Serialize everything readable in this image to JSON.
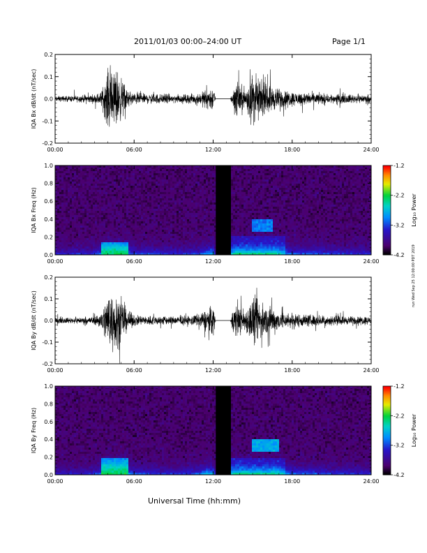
{
  "header": {
    "title": "2011/01/03  00:00–24:00 UT",
    "page": "Page 1/1"
  },
  "footer": {
    "xlabel": "Universal Time (hh:mm)",
    "side_stamp": "run Wed Sep 25 12:00:00 PDT 2019"
  },
  "chart_data": [
    {
      "type": "line",
      "panel": "Bx dB/dt waveform",
      "ylabel": "IQA Bx dB/dt (nT/sec)",
      "x": [
        "00:00",
        "06:00",
        "12:00",
        "18:00",
        "24:00"
      ],
      "xlim": [
        0,
        24
      ],
      "ylim": [
        -0.2,
        0.2
      ],
      "yticks": [
        "-0.2",
        "-0.1",
        "0.0",
        "0.1",
        "0.2"
      ],
      "data_gap_hours": [
        12.2,
        13.3
      ],
      "envelope": {
        "hours": [
          0,
          1,
          2,
          3,
          3.5,
          4,
          4.3,
          4.7,
          5,
          5.5,
          6,
          7,
          8,
          9,
          10,
          11,
          11.5,
          12,
          12.2,
          13.3,
          13.6,
          14,
          14.5,
          15,
          15.5,
          16,
          16.5,
          17,
          18,
          19,
          20,
          21,
          22,
          23,
          24
        ],
        "amplitude": [
          0.02,
          0.02,
          0.025,
          0.03,
          0.05,
          0.2,
          0.2,
          0.2,
          0.15,
          0.06,
          0.04,
          0.035,
          0.035,
          0.03,
          0.03,
          0.04,
          0.07,
          0.09,
          0.0,
          0.0,
          0.12,
          0.1,
          0.08,
          0.2,
          0.12,
          0.1,
          0.09,
          0.07,
          0.05,
          0.045,
          0.04,
          0.035,
          0.03,
          0.03,
          0.03
        ]
      }
    },
    {
      "type": "heatmap",
      "panel": "Bx spectrogram",
      "ylabel": "IQA Bx Freq (Hz)",
      "x": [
        "00:00",
        "06:00",
        "12:00",
        "18:00",
        "24:00"
      ],
      "xlim": [
        0,
        24
      ],
      "ylim": [
        0.0,
        1.0
      ],
      "yticks": [
        "0.0",
        "0.2",
        "0.4",
        "0.6",
        "0.8",
        "1.0"
      ],
      "colorbar": {
        "label": "Log₁₀ Power",
        "ticks": [
          "-1.2",
          "-2.2",
          "-3.2",
          "-4.2"
        ],
        "range": [
          -4.2,
          -1.2
        ]
      },
      "data_gap_hours": [
        12.2,
        13.3
      ],
      "features": [
        {
          "hours": [
            3.5,
            5.5
          ],
          "freq_max": 0.15,
          "level": -2.2
        },
        {
          "hours": [
            15.0,
            16.5
          ],
          "freq_range": [
            0.25,
            0.4
          ],
          "level": -3.0
        }
      ]
    },
    {
      "type": "line",
      "panel": "By dB/dt waveform",
      "ylabel": "IQA By dB/dt (nT/sec)",
      "x": [
        "00:00",
        "06:00",
        "12:00",
        "18:00",
        "24:00"
      ],
      "xlim": [
        0,
        24
      ],
      "ylim": [
        -0.2,
        0.2
      ],
      "yticks": [
        "-0.2",
        "-0.1",
        "0.0",
        "0.1",
        "0.2"
      ],
      "data_gap_hours": [
        12.2,
        13.3
      ],
      "envelope": {
        "hours": [
          0,
          1,
          2,
          3,
          3.5,
          4,
          4.3,
          4.7,
          5,
          5.5,
          6,
          7,
          8,
          9,
          10,
          11,
          11.5,
          12,
          12.2,
          13.3,
          13.6,
          14,
          14.5,
          15,
          15.5,
          16,
          16.5,
          17,
          18,
          19,
          20,
          21,
          22,
          23,
          24
        ],
        "amplitude": [
          0.02,
          0.02,
          0.025,
          0.03,
          0.06,
          0.2,
          0.2,
          0.2,
          0.16,
          0.07,
          0.04,
          0.035,
          0.035,
          0.03,
          0.03,
          0.05,
          0.08,
          0.12,
          0.0,
          0.0,
          0.13,
          0.1,
          0.08,
          0.18,
          0.14,
          0.11,
          0.1,
          0.07,
          0.05,
          0.045,
          0.04,
          0.035,
          0.03,
          0.03,
          0.03
        ]
      }
    },
    {
      "type": "heatmap",
      "panel": "By spectrogram",
      "ylabel": "IQA By Freq (Hz)",
      "x": [
        "00:00",
        "06:00",
        "12:00",
        "18:00",
        "24:00"
      ],
      "xlim": [
        0,
        24
      ],
      "ylim": [
        0.0,
        1.0
      ],
      "yticks": [
        "0.0",
        "0.2",
        "0.4",
        "0.6",
        "0.8",
        "1.0"
      ],
      "colorbar": {
        "label": "Log₁₀ Power",
        "ticks": [
          "-1.2",
          "-2.2",
          "-3.2",
          "-4.2"
        ],
        "range": [
          -4.2,
          -1.2
        ]
      },
      "data_gap_hours": [
        12.2,
        13.3
      ],
      "features": [
        {
          "hours": [
            3.5,
            5.5
          ],
          "freq_max": 0.2,
          "level": -2.2
        },
        {
          "hours": [
            15.0,
            17.0
          ],
          "freq_range": [
            0.25,
            0.4
          ],
          "level": -2.8
        }
      ]
    }
  ]
}
